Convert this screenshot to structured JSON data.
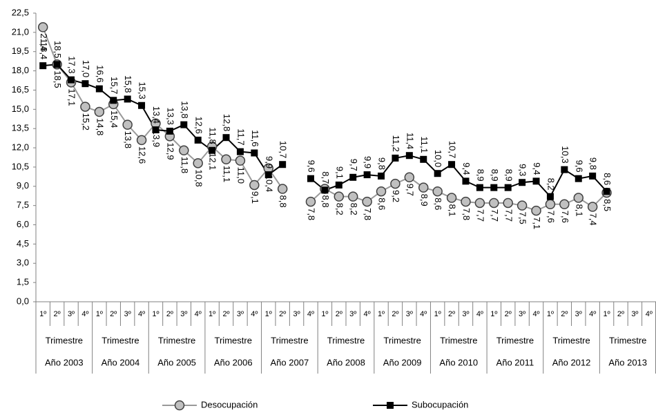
{
  "chart_data": {
    "type": "line",
    "categories": [
      "1º",
      "2º",
      "3º",
      "4º",
      "1º",
      "2º",
      "3º",
      "4º",
      "1º",
      "2º",
      "3º",
      "4º",
      "1º",
      "2º",
      "3º",
      "4º",
      "1º",
      "2º",
      "3º",
      "4º",
      "1º",
      "2º",
      "3º",
      "4º",
      "1º",
      "2º",
      "3º",
      "4º",
      "1º",
      "2º",
      "3º",
      "4º",
      "1º",
      "2º",
      "3º",
      "4º",
      "1º",
      "2º",
      "3º",
      "4º",
      "1º",
      "2º",
      "3º",
      "4º"
    ],
    "category_groups": [
      {
        "name": "Trimestre",
        "year": "Año 2003"
      },
      {
        "name": "Trimestre",
        "year": "Año 2004"
      },
      {
        "name": "Trimestre",
        "year": "Año 2005"
      },
      {
        "name": "Trimestre",
        "year": "Año 2006"
      },
      {
        "name": "Trimestre",
        "year": "Año 2007"
      },
      {
        "name": "Trimestre",
        "year": "Año 2008"
      },
      {
        "name": "Trimestre",
        "year": "Año 2009"
      },
      {
        "name": "Trimestre",
        "year": "Año 2010"
      },
      {
        "name": "Trimestre",
        "year": "Año 2011"
      },
      {
        "name": "Trimestre",
        "year": "Año 2012"
      },
      {
        "name": "Trimestre",
        "year": "Año 2013"
      }
    ],
    "series": [
      {
        "name": "Desocupación",
        "color": "#999999",
        "marker": "circle",
        "values": [
          21.4,
          18.5,
          17.1,
          15.2,
          14.8,
          15.4,
          13.8,
          12.6,
          13.9,
          12.9,
          11.8,
          10.8,
          12.1,
          11.1,
          11.0,
          9.1,
          10.4,
          8.8,
          null,
          7.8,
          8.8,
          8.2,
          8.2,
          7.8,
          8.6,
          9.2,
          9.7,
          8.9,
          8.6,
          8.1,
          7.8,
          7.7,
          7.7,
          7.7,
          7.5,
          7.1,
          7.6,
          7.6,
          8.1,
          7.4,
          8.5,
          null,
          null,
          null
        ],
        "value_labels": [
          "21,4",
          "18,5",
          "17,1",
          "15,2",
          "14,8",
          "15,4",
          "13,8",
          "12,6",
          "13,9",
          "12,9",
          "11,8",
          "10,8",
          "12,1",
          "11,1",
          "11,0",
          "9,1",
          "10,4",
          "8,8",
          null,
          "7,8",
          "8,8",
          "8,2",
          "8,2",
          "7,8",
          "8,6",
          "9,2",
          "9,7",
          "8,9",
          "8,6",
          "8,1",
          "7,8",
          "7,7",
          "7,7",
          "7,7",
          "7,5",
          "7,1",
          "7,6",
          "7,6",
          "8,1",
          "7,4",
          "8,5",
          null,
          null,
          null
        ]
      },
      {
        "name": "Subocupación",
        "color": "#000000",
        "marker": "square",
        "values": [
          18.4,
          18.5,
          17.3,
          17.0,
          16.6,
          15.7,
          15.8,
          15.3,
          13.4,
          13.3,
          13.8,
          12.6,
          11.8,
          12.8,
          11.7,
          11.6,
          9.9,
          10.7,
          null,
          9.6,
          8.7,
          9.1,
          9.7,
          9.9,
          9.8,
          11.2,
          11.4,
          11.1,
          10.0,
          10.7,
          9.4,
          8.9,
          8.9,
          8.9,
          9.3,
          9.4,
          8.2,
          10.3,
          9.6,
          9.8,
          8.6,
          null,
          null,
          null
        ],
        "value_labels": [
          "18,4",
          "18,5",
          "17,3",
          "17,0",
          "16,6",
          "15,7",
          "15,8",
          "15,3",
          "13,4",
          "13,3",
          "13,8",
          "12,6",
          "11,8",
          "12,8",
          "11,7",
          "11,6",
          "9,9",
          "10,7",
          null,
          "9,6",
          "8,7",
          "9,1",
          "9,7",
          "9,9",
          "9,8",
          "11,2",
          "11,4",
          "11,1",
          "10,0",
          "10,7",
          "9,4",
          "8,9",
          "8,9",
          "8,9",
          "9,3",
          "9,4",
          "8,2",
          "10,3",
          "9,6",
          "9,8",
          "8,6",
          null,
          null,
          null
        ]
      }
    ],
    "ylim": [
      0,
      22.5
    ],
    "yticks": [
      {
        "value": 0,
        "label": "0,0"
      },
      {
        "value": 1.5,
        "label": "1,5"
      },
      {
        "value": 3,
        "label": "3,0"
      },
      {
        "value": 4.5,
        "label": "4,5"
      },
      {
        "value": 6,
        "label": "6,0"
      },
      {
        "value": 7.5,
        "label": "7,5"
      },
      {
        "value": 9,
        "label": "9,0"
      },
      {
        "value": 10.5,
        "label": "10,5"
      },
      {
        "value": 12,
        "label": "12,0"
      },
      {
        "value": 13.5,
        "label": "13,5"
      },
      {
        "value": 15,
        "label": "15,0"
      },
      {
        "value": 16.5,
        "label": "16,5"
      },
      {
        "value": 18,
        "label": "18,0"
      },
      {
        "value": 19.5,
        "label": "19,5"
      },
      {
        "value": 21,
        "label": "21,0"
      },
      {
        "value": 22.5,
        "label": "22,5"
      }
    ],
    "grid": false,
    "legend": "bottom"
  }
}
